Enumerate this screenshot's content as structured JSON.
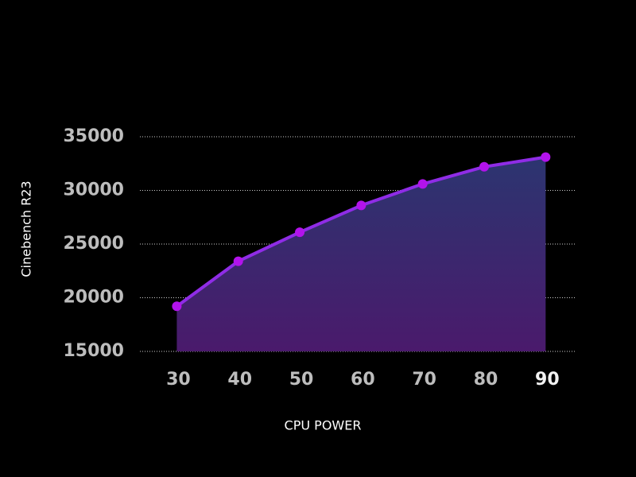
{
  "chart_data": {
    "type": "area",
    "x_label": "CPU POWER",
    "y_label": "Cinebench R23",
    "x": [
      30,
      40,
      50,
      60,
      70,
      80,
      90
    ],
    "series": [
      {
        "name": "Cinebench R23",
        "color": "#8f2ce6",
        "marker_color": "#b313ec",
        "values": [
          19200,
          23400,
          26100,
          28600,
          30600,
          32200,
          33100
        ]
      }
    ],
    "area_gradient": [
      "#2c3570",
      "#4a1a6c"
    ],
    "xlim": [
      24,
      95
    ],
    "ylim": [
      15000,
      35000
    ],
    "xticks": [
      30,
      40,
      50,
      60,
      70,
      80,
      90
    ],
    "yticks": [
      15000,
      20000,
      25000,
      30000,
      35000
    ],
    "grid": true
  }
}
